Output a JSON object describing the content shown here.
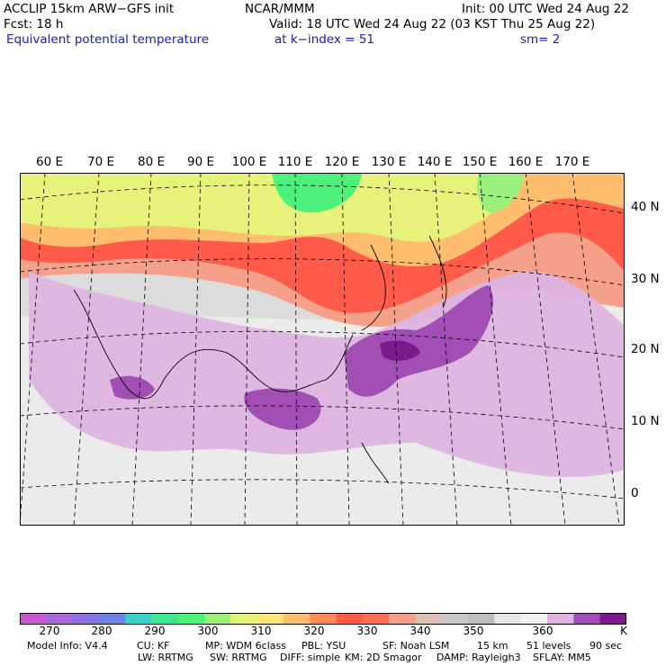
{
  "header": {
    "line1_left": "ACCLIP 15km ARW−GFS init",
    "line1_mid": "NCAR/MMM",
    "line1_right": "Init: 00 UTC Wed 24 Aug 22",
    "line2_left": "Fcst:   18 h",
    "line2_right": "Valid: 18 UTC Wed 24 Aug 22 (03 KST Thu 25 Aug 22)",
    "line3_left": "Equivalent potential temperature",
    "line3_mid": "at k−index =  51",
    "line3_right": "sm= 2"
  },
  "map": {
    "lon_labels": [
      "60 E",
      "70 E",
      "80 E",
      "90 E",
      "100 E",
      "110 E",
      "120 E",
      "130 E",
      "140 E",
      "150 E",
      "160 E",
      "170 E"
    ],
    "lat_labels": [
      "40 N",
      "30 N",
      "20 N",
      "10 N",
      "0"
    ]
  },
  "colorbar": {
    "labels": [
      "270",
      "280",
      "290",
      "300",
      "310",
      "320",
      "330",
      "340",
      "350",
      "360"
    ],
    "unit": "K",
    "colors": [
      "#c859cf",
      "#a86ad8",
      "#8a73e0",
      "#6f82e6",
      "#3ccfc6",
      "#3de596",
      "#4cf07a",
      "#9af07a",
      "#e6f27a",
      "#ffe27a",
      "#ffbd6e",
      "#ff8a5a",
      "#ff5a4a",
      "#ff6e56",
      "#f5a08a",
      "#dcc1b4",
      "#c8c8c8",
      "#bebebe",
      "#e6e6e6",
      "#f2f2f2",
      "#ddb5e0",
      "#a14fb5",
      "#7a1a8c"
    ]
  },
  "footer": {
    "line1": [
      "Model Info: V4.4",
      "CU: KF",
      "MP: WDM 6class",
      "PBL: YSU",
      "SF: Noah LSM",
      "15 km",
      "51 levels",
      "90 sec"
    ],
    "line2": [
      "LW: RRTMG",
      "SW: RRTMG",
      "DIFF: simple",
      "KM: 2D Smagor",
      "DAMP: Rayleigh3",
      "SFLAY: MM5"
    ]
  }
}
